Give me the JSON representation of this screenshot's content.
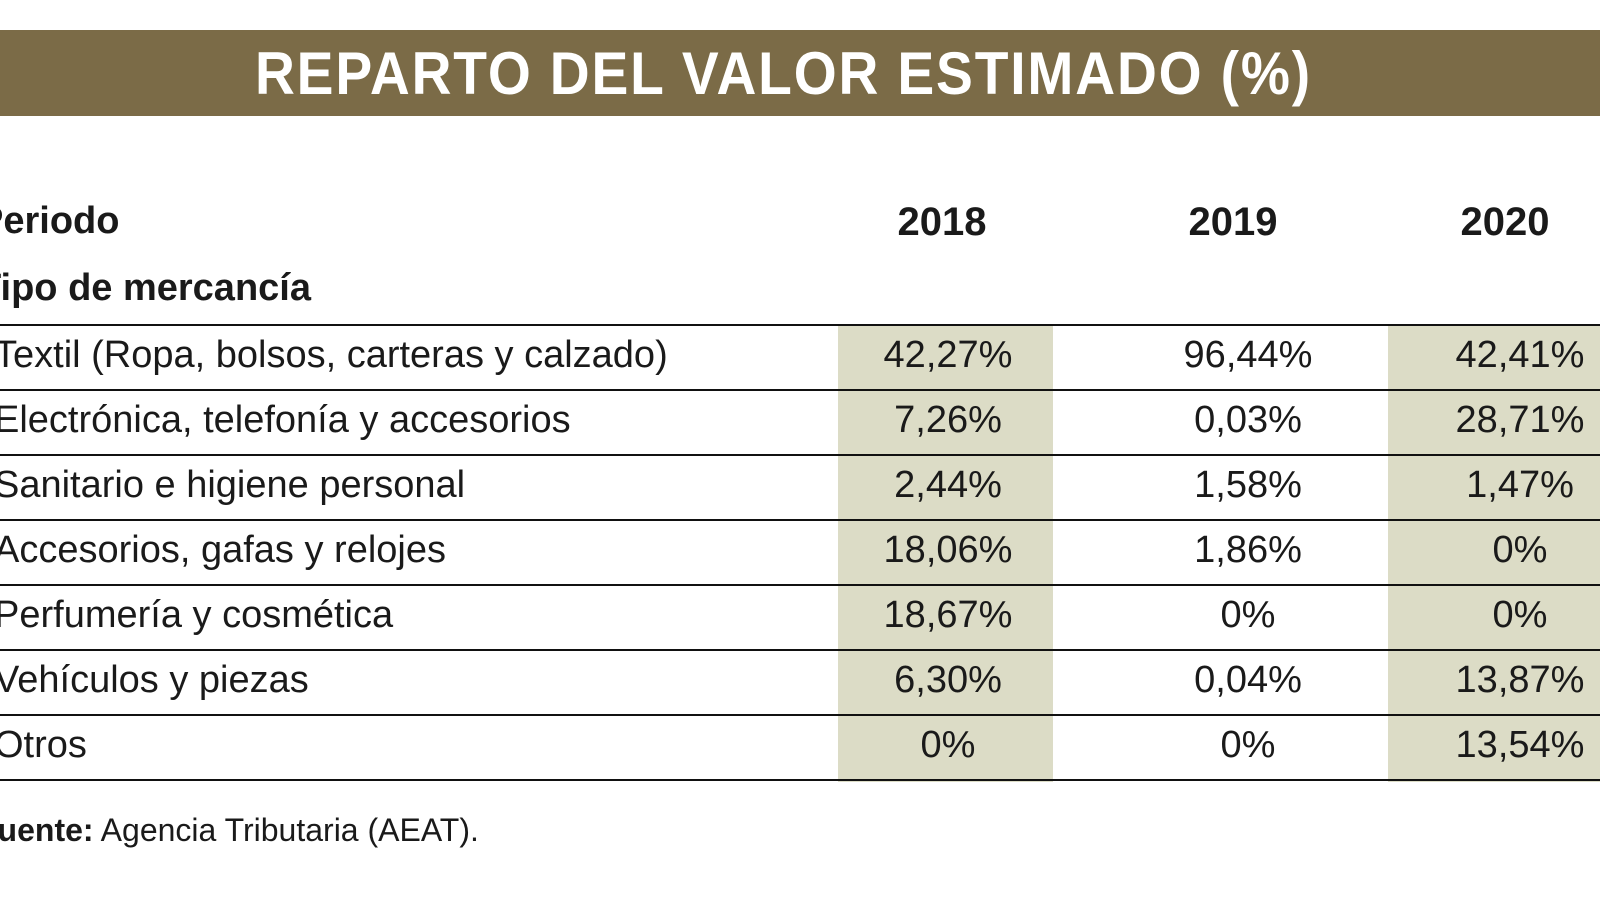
{
  "title": "REPARTO DEL VALOR ESTIMADO (%)",
  "header_label": "Periodo",
  "subheader_label": "Tipo de mercancía",
  "footer": {
    "label": "Fuente:",
    "text": " Agencia Tributaria (AEAT)."
  },
  "colors": {
    "title_bar": "#7b6b47",
    "shaded_column": "#dcdcc6"
  },
  "chart_data": {
    "type": "table",
    "title": "REPARTO DEL VALOR ESTIMADO (%)",
    "columns": [
      "2018",
      "2019",
      "2020"
    ],
    "rows": [
      {
        "label": "Textil (Ropa, bolsos, carteras y calzado)",
        "values": [
          "42,27%",
          "96,44%",
          "42,41%"
        ]
      },
      {
        "label": "Electrónica, telefonía y accesorios",
        "values": [
          "7,26%",
          "0,03%",
          "28,71%"
        ]
      },
      {
        "label": "Sanitario e higiene personal",
        "values": [
          "2,44%",
          "1,58%",
          "1,47%"
        ]
      },
      {
        "label": "Accesorios, gafas y relojes",
        "values": [
          "18,06%",
          "1,86%",
          "0%"
        ]
      },
      {
        "label": "Perfumería y cosmética",
        "values": [
          "18,67%",
          "0%",
          "0%"
        ]
      },
      {
        "label": "Vehículos y piezas",
        "values": [
          "6,30%",
          "0,04%",
          "13,87%"
        ]
      },
      {
        "label": "Otros",
        "values": [
          "0%",
          "0%",
          "13,54%"
        ]
      }
    ]
  }
}
